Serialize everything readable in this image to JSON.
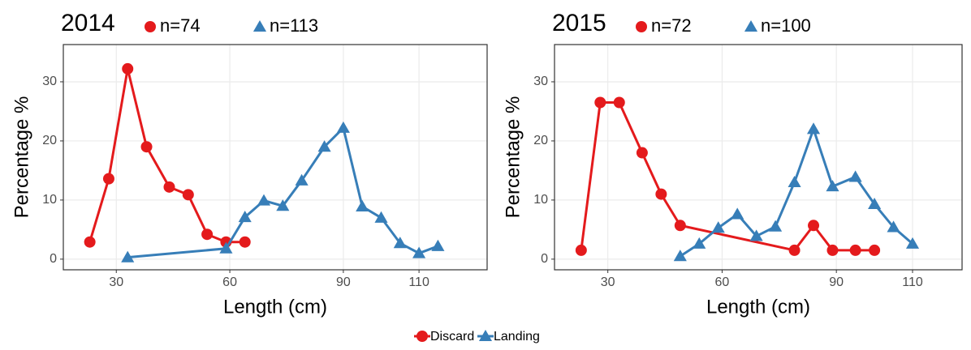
{
  "chart_data": [
    {
      "type": "line",
      "title": "2014",
      "x_label": "Length (cm)",
      "y_label": "Percentage %",
      "xlim": [
        16,
        128
      ],
      "ylim": [
        -1.8,
        36.3
      ],
      "xticks": [
        30,
        60,
        90,
        110
      ],
      "yticks": [
        0,
        10,
        20,
        30
      ],
      "grid": true,
      "series": [
        {
          "label": "n=74",
          "color": "#e41a1c",
          "marker": "circle",
          "x": [
            23,
            28,
            33,
            38,
            44,
            49,
            54,
            59,
            64
          ],
          "values": [
            2.9,
            13.6,
            32.2,
            19.0,
            12.2,
            10.9,
            4.2,
            2.9,
            2.9
          ]
        },
        {
          "label": "n=113",
          "color": "#377eb8",
          "marker": "triangle",
          "x": [
            33,
            59,
            64,
            69,
            74,
            79,
            85,
            90,
            95,
            100,
            105,
            110,
            115
          ],
          "values": [
            0.3,
            1.8,
            7.1,
            9.9,
            9.0,
            13.3,
            19.0,
            22.2,
            8.9,
            7.0,
            2.7,
            1.0,
            2.2
          ]
        }
      ]
    },
    {
      "type": "line",
      "title": "2015",
      "x_label": "Length (cm)",
      "y_label": "Percentage %",
      "xlim": [
        16,
        123
      ],
      "ylim": [
        -1.8,
        36.3
      ],
      "xticks": [
        30,
        60,
        90,
        110
      ],
      "yticks": [
        0,
        10,
        20,
        30
      ],
      "grid": true,
      "series": [
        {
          "label": "n=72",
          "color": "#e41a1c",
          "marker": "circle",
          "x": [
            23,
            28,
            33,
            39,
            44,
            49,
            79,
            84,
            89,
            95,
            100
          ],
          "values": [
            1.5,
            26.5,
            26.5,
            18.0,
            11.0,
            5.7,
            1.5,
            5.7,
            1.5,
            1.5,
            1.5
          ]
        },
        {
          "label": "n=100",
          "color": "#377eb8",
          "marker": "triangle",
          "x": [
            49,
            54,
            59,
            64,
            69,
            74,
            79,
            84,
            89,
            95,
            100,
            105,
            110
          ],
          "values": [
            0.5,
            2.6,
            5.3,
            7.6,
            3.9,
            5.5,
            13.0,
            22.0,
            12.3,
            13.9,
            9.3,
            5.4,
            2.6
          ]
        }
      ]
    }
  ],
  "legend": [
    "Discard",
    "Landing"
  ]
}
